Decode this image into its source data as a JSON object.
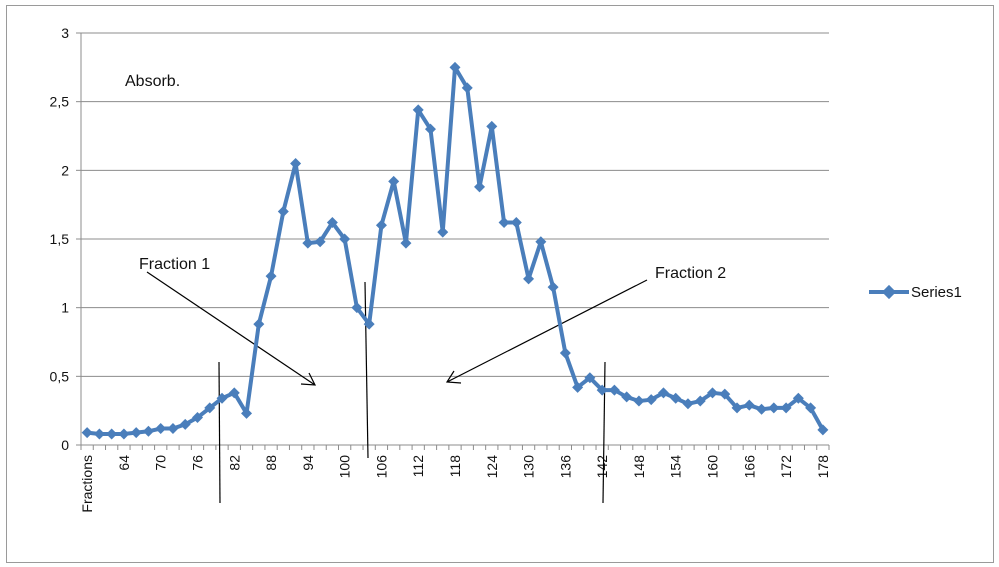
{
  "chart_data": {
    "type": "line",
    "ylim": [
      0,
      3
    ],
    "y_ticks": [
      "0",
      "0,5",
      "1",
      "1,5",
      "2",
      "2,5",
      "3"
    ],
    "y_tick_values": [
      0,
      0.5,
      1,
      1.5,
      2,
      2.5,
      3
    ],
    "x_tick_labels": [
      "Fractions",
      "64",
      "70",
      "76",
      "82",
      "88",
      "94",
      "100",
      "106",
      "112",
      "118",
      "124",
      "130",
      "136",
      "142",
      "148",
      "154",
      "160",
      "166",
      "172",
      "178"
    ],
    "x_label_every": 3,
    "grid": "horizontal",
    "legend_position": "right",
    "series": [
      {
        "name": "Series1",
        "color": "#4a7ebb",
        "marker": "diamond",
        "values": [
          0.09,
          0.08,
          0.08,
          0.08,
          0.09,
          0.1,
          0.12,
          0.12,
          0.15,
          0.2,
          0.27,
          0.34,
          0.38,
          0.23,
          0.88,
          1.23,
          1.7,
          2.05,
          1.47,
          1.48,
          1.62,
          1.5,
          1.0,
          0.88,
          1.6,
          1.92,
          1.47,
          2.44,
          2.3,
          1.55,
          2.75,
          2.6,
          1.88,
          2.32,
          1.62,
          1.62,
          1.21,
          1.48,
          1.15,
          0.67,
          0.42,
          0.49,
          0.4,
          0.4,
          0.35,
          0.32,
          0.33,
          0.38,
          0.34,
          0.3,
          0.32,
          0.38,
          0.37,
          0.27,
          0.29,
          0.26,
          0.27,
          0.27,
          0.34,
          0.27,
          0.11
        ]
      }
    ],
    "annotations": [
      {
        "text": "Absorb."
      },
      {
        "text": "Fraction 1"
      },
      {
        "text": "Fraction 2"
      }
    ]
  }
}
